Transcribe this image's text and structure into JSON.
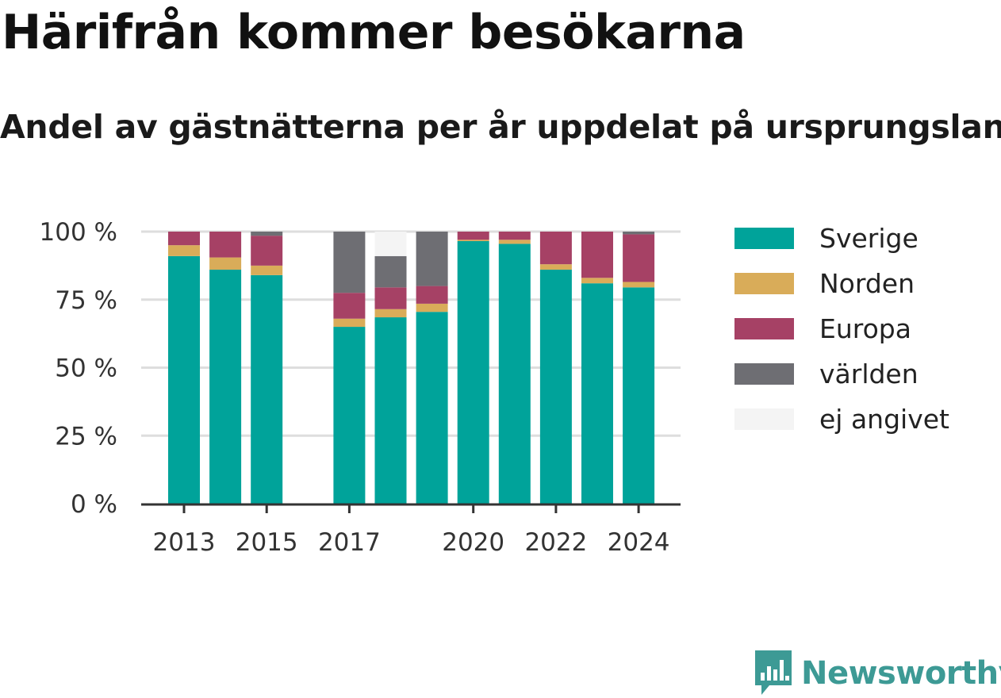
{
  "header": {
    "title": "Härifrån kommer besökarna",
    "subtitle": "Andel av gästnätterna per år uppdelat på ursprungsland"
  },
  "brand": {
    "name": "Newsworthy",
    "color": "#3d9a95"
  },
  "chart_data": {
    "type": "bar",
    "stacked": true,
    "categories": [
      "2013",
      "2014",
      "2015",
      "2016",
      "2017",
      "2018",
      "2019",
      "2020",
      "2021",
      "2022",
      "2023",
      "2024"
    ],
    "x_tick_labels": [
      "2013",
      "",
      "2015",
      "",
      "2017",
      "",
      "",
      "2020",
      "",
      "2022",
      "",
      "2024"
    ],
    "series": [
      {
        "name": "Sverige",
        "color": "#00a39a",
        "values": [
          91,
          86,
          84,
          null,
          65,
          68.5,
          70.5,
          96.5,
          95.5,
          86,
          81,
          79.5
        ]
      },
      {
        "name": "Norden",
        "color": "#d9ac59",
        "values": [
          4,
          4.5,
          3.5,
          null,
          3,
          3,
          3,
          0.5,
          1.5,
          2,
          2,
          2
        ]
      },
      {
        "name": "Europa",
        "color": "#a64165",
        "values": [
          5,
          9.5,
          11,
          null,
          9.5,
          8,
          6.5,
          3,
          3,
          12,
          17,
          17.5
        ]
      },
      {
        "name": "världen",
        "color": "#6e6e73",
        "values": [
          0,
          0,
          1.5,
          null,
          22.5,
          11.5,
          20,
          0,
          0,
          0,
          0,
          1
        ]
      },
      {
        "name": "ej angivet",
        "color": "#f4f4f4",
        "values": [
          0,
          0,
          0,
          null,
          0,
          9,
          0,
          0,
          0,
          0,
          0,
          0
        ]
      }
    ],
    "ylim": [
      0,
      100
    ],
    "y_ticks": [
      0,
      25,
      50,
      75,
      100
    ],
    "y_tick_labels": [
      "0 %",
      "25 %",
      "50 %",
      "75 %",
      "100 %"
    ],
    "grid": true,
    "legend_position": "right"
  }
}
